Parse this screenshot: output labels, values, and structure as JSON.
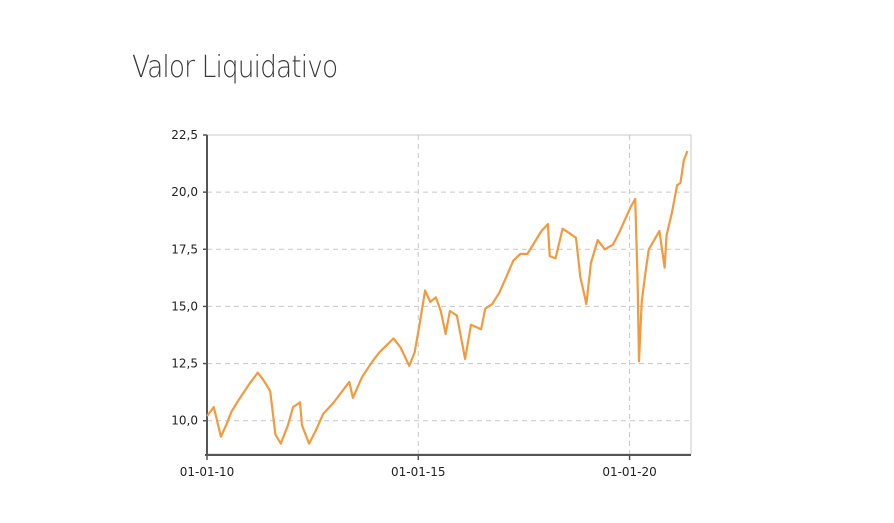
{
  "chart_data": {
    "type": "line",
    "title": "Valor Liquidativo",
    "xlabel": "",
    "ylabel": "",
    "x_ticks": [
      "01-01-10",
      "01-01-15",
      "01-01-20"
    ],
    "y_ticks": [
      "10,0",
      "12,5",
      "15,0",
      "17,5",
      "20,0",
      "22,5"
    ],
    "xlim": [
      "2010-01-01",
      "2021-06-15"
    ],
    "ylim": [
      8.5,
      22.5
    ],
    "grid": true,
    "colors": {
      "line": "#f39a3f"
    },
    "series": [
      {
        "x": [
          "2010-01-01",
          "2010-03-01",
          "2010-05-01",
          "2010-06-15",
          "2010-08-01",
          "2010-10-01",
          "2011-01-01",
          "2011-03-15",
          "2011-05-01",
          "2011-07-01",
          "2011-08-15",
          "2011-10-01",
          "2011-12-01",
          "2012-01-15",
          "2012-03-15",
          "2012-04-01",
          "2012-06-01",
          "2012-08-01",
          "2012-10-01",
          "2013-01-01",
          "2013-03-01",
          "2013-05-15",
          "2013-06-15",
          "2013-09-01",
          "2013-12-01",
          "2014-02-01",
          "2014-04-01",
          "2014-06-01",
          "2014-08-01",
          "2014-10-15",
          "2014-12-01",
          "2015-01-15",
          "2015-03-01",
          "2015-04-15",
          "2015-06-01",
          "2015-07-15",
          "2015-08-25",
          "2015-10-01",
          "2015-12-01",
          "2016-02-10",
          "2016-04-01",
          "2016-06-27",
          "2016-08-01",
          "2016-10-01",
          "2016-12-01",
          "2017-02-01",
          "2017-04-01",
          "2017-06-01",
          "2017-08-01",
          "2017-10-01",
          "2017-12-01",
          "2018-01-25",
          "2018-02-10",
          "2018-04-01",
          "2018-06-01",
          "2018-08-01",
          "2018-09-25",
          "2018-11-01",
          "2018-12-24",
          "2019-02-01",
          "2019-04-01",
          "2019-06-01",
          "2019-08-10",
          "2019-10-01",
          "2019-12-01",
          "2020-01-15",
          "2020-02-19",
          "2020-03-10",
          "2020-03-23",
          "2020-04-15",
          "2020-05-15",
          "2020-06-15",
          "2020-08-01",
          "2020-09-15",
          "2020-10-30",
          "2020-11-15",
          "2021-01-01",
          "2021-02-15",
          "2021-03-15",
          "2021-04-15",
          "2021-05-15"
        ],
        "y": [
          10.2,
          10.6,
          9.3,
          9.8,
          10.4,
          10.9,
          11.6,
          12.1,
          11.8,
          11.3,
          9.4,
          9.0,
          9.8,
          10.6,
          10.8,
          9.8,
          9.0,
          9.6,
          10.3,
          10.8,
          11.2,
          11.7,
          11.0,
          11.9,
          12.6,
          13.0,
          13.3,
          13.6,
          13.2,
          12.4,
          13.0,
          14.3,
          15.7,
          15.2,
          15.4,
          14.8,
          13.8,
          14.8,
          14.6,
          12.7,
          14.2,
          14.0,
          14.9,
          15.1,
          15.6,
          16.3,
          17.0,
          17.3,
          17.3,
          17.8,
          18.3,
          18.6,
          17.2,
          17.1,
          18.4,
          18.2,
          18.0,
          16.3,
          15.1,
          16.9,
          17.9,
          17.5,
          17.7,
          18.2,
          18.9,
          19.4,
          19.7,
          16.3,
          12.6,
          15.2,
          16.4,
          17.5,
          17.9,
          18.3,
          16.7,
          18.1,
          19.1,
          20.3,
          20.4,
          21.4,
          21.8
        ],
        "color": "#f39a3f"
      }
    ]
  }
}
